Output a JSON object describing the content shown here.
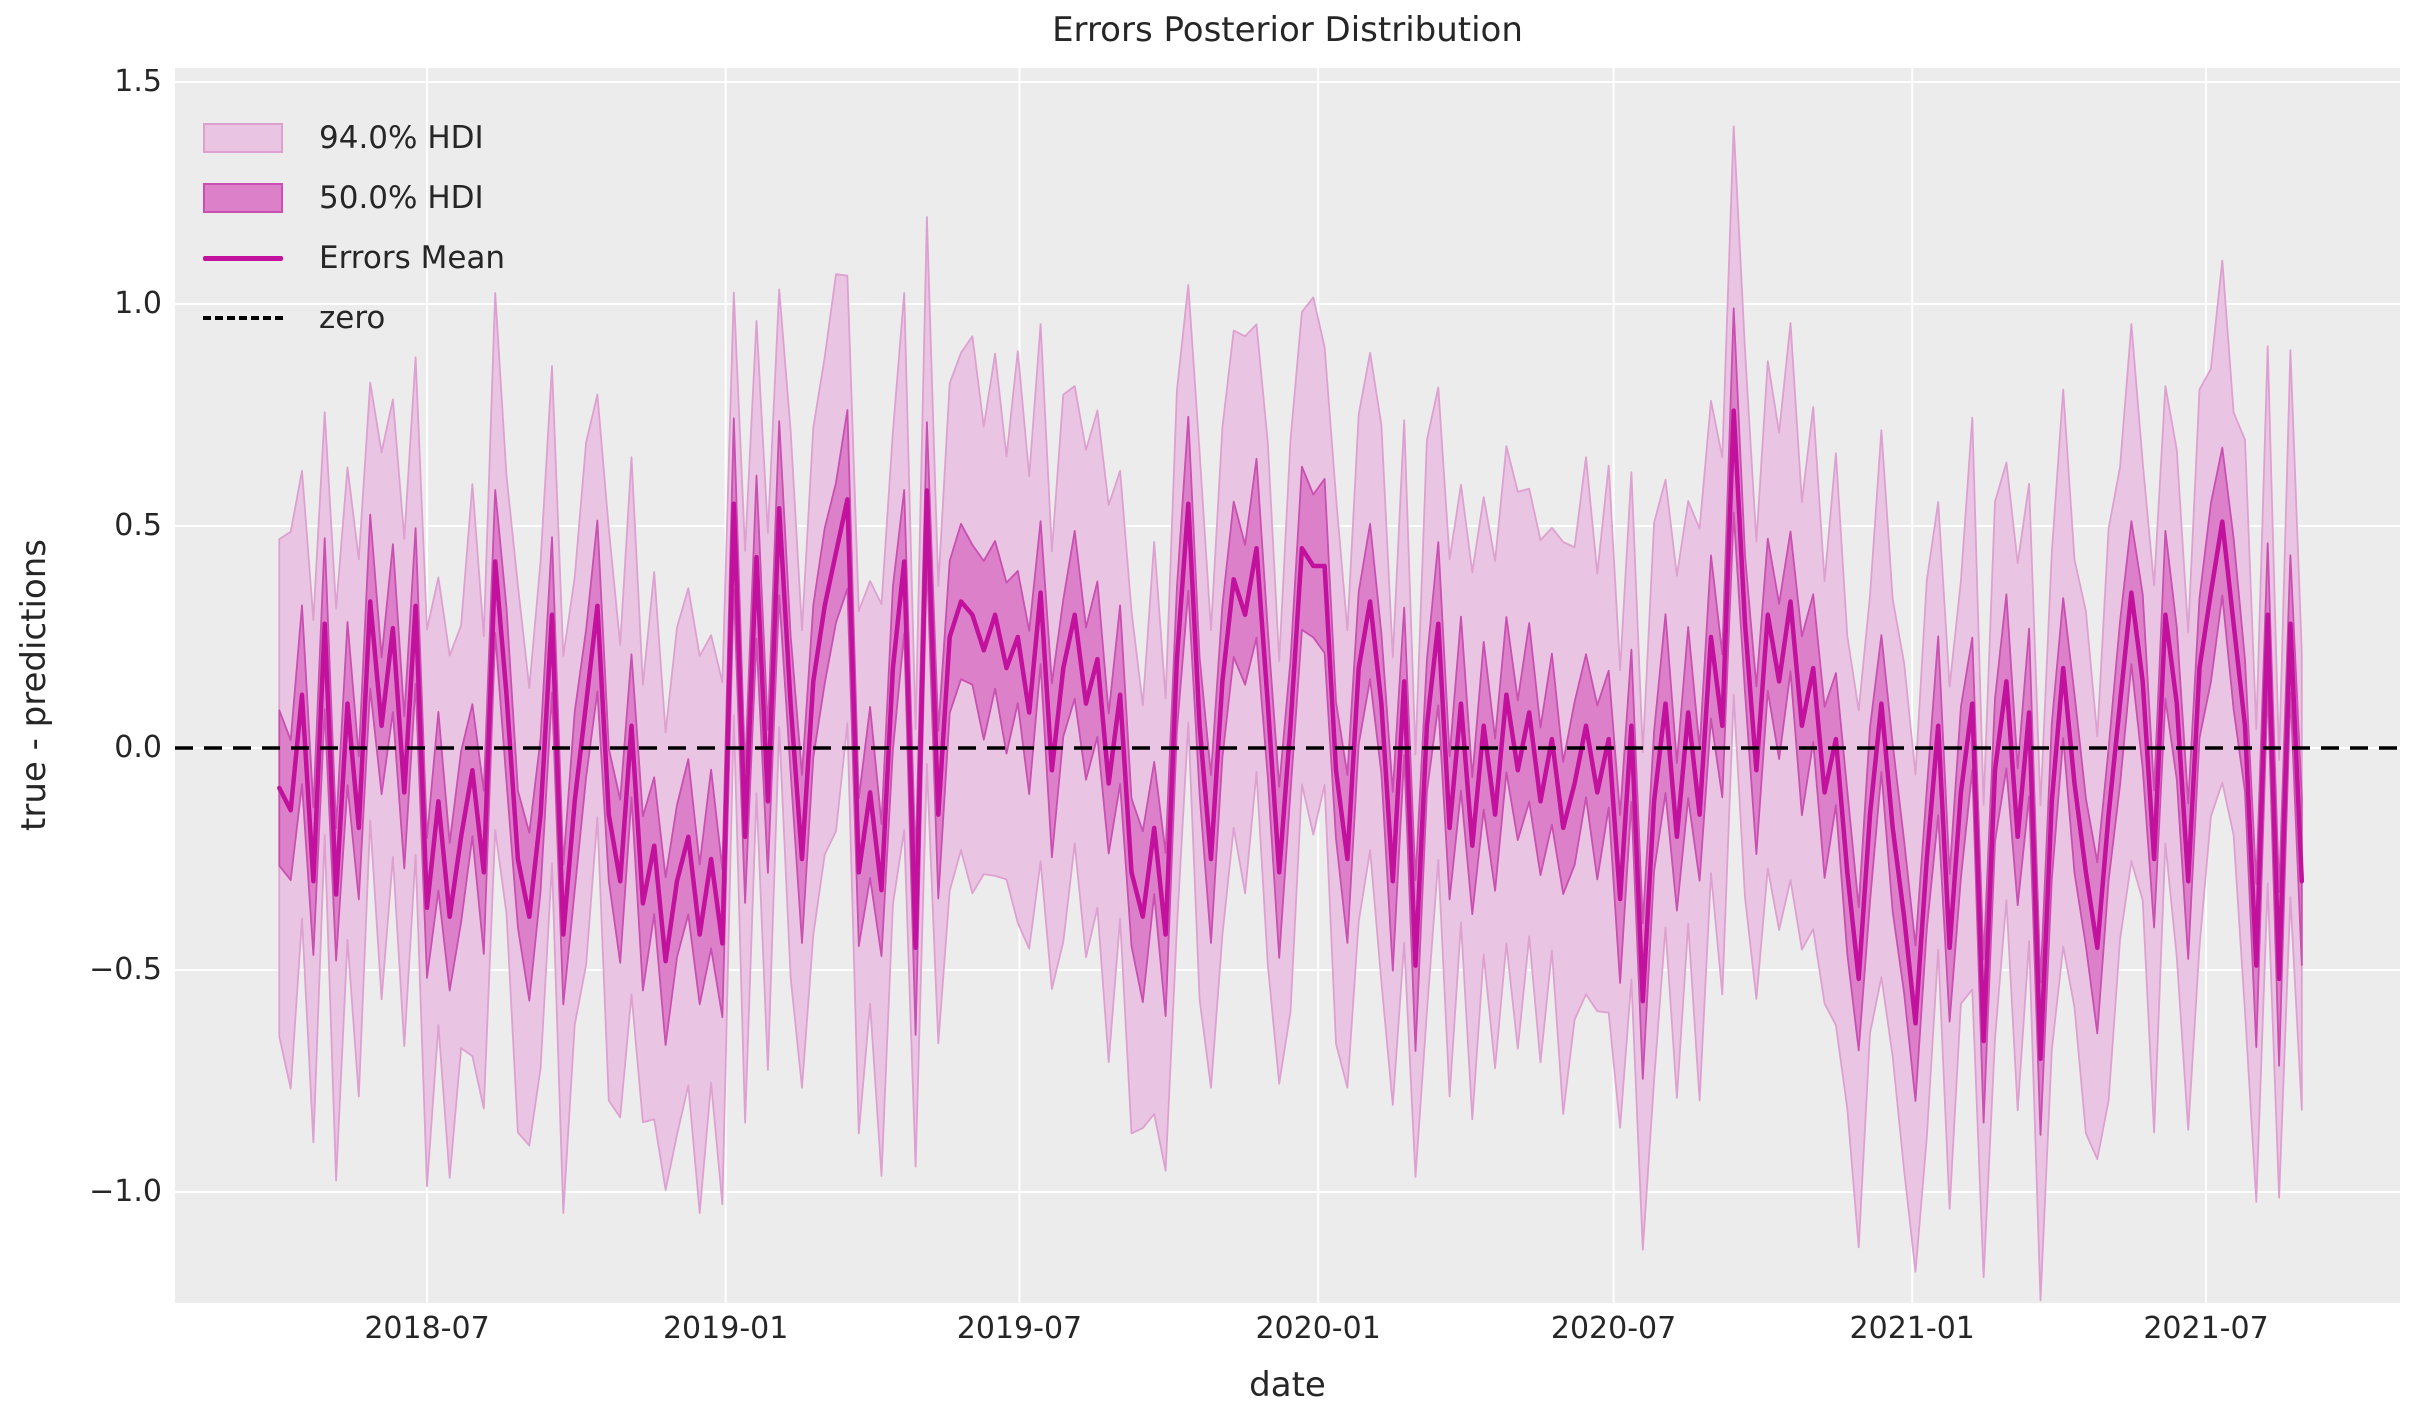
{
  "chart_data": {
    "type": "line",
    "subtype": "time-series mean with HDI uncertainty bands",
    "title": "Errors Posterior Distribution",
    "xlabel": "date",
    "ylabel": "true - predictions",
    "grid": true,
    "legend": {
      "position": "upper-left",
      "frame": false,
      "entries": [
        {
          "label": "94.0% HDI",
          "type": "patch",
          "fill": "#eac5e3",
          "edge": "#dda0d0"
        },
        {
          "label": "50.0% HDI",
          "type": "patch",
          "fill": "#dc80ca",
          "edge": "#c94fb0"
        },
        {
          "label": "Errors Mean",
          "type": "line",
          "color": "#c2119c"
        },
        {
          "label": "zero",
          "type": "dashed-line",
          "color": "#000000"
        }
      ]
    },
    "y_ticks": [
      {
        "v": 1.5,
        "label": "1.5"
      },
      {
        "v": 1.0,
        "label": "1.0"
      },
      {
        "v": 0.5,
        "label": "0.5"
      },
      {
        "v": 0.0,
        "label": "0.0"
      },
      {
        "v": -0.5,
        "label": "−0.5"
      },
      {
        "v": -1.0,
        "label": "−1.0"
      }
    ],
    "x_ticks": [
      {
        "date": "2018-07-01",
        "label": "2018-07"
      },
      {
        "date": "2019-01-01",
        "label": "2019-01"
      },
      {
        "date": "2019-07-01",
        "label": "2019-07"
      },
      {
        "date": "2020-01-01",
        "label": "2020-01"
      },
      {
        "date": "2020-07-01",
        "label": "2020-07"
      },
      {
        "date": "2021-01-01",
        "label": "2021-01"
      },
      {
        "date": "2021-07-01",
        "label": "2021-07"
      }
    ],
    "ylim": [
      -1.25,
      1.53
    ],
    "xlim_dates": [
      "2018-01-22",
      "2021-10-28"
    ],
    "zero_line": 0.0,
    "colors": {
      "axes_background": "#ececec",
      "grid": "#ffffff",
      "text": "#262626",
      "mean_line": "#c2119c",
      "hdi94_fill": "#eac5e3",
      "hdi94_edge": "#dda0d0",
      "hdi50_fill": "#dc80ca",
      "hdi50_edge": "#c94fb0",
      "zero_line": "#000000"
    },
    "series": {
      "name": "Errors Mean",
      "cadence": "weekly",
      "start_date": "2018-04-01",
      "interval_days": 7,
      "mean": [
        -0.09,
        -0.14,
        0.12,
        -0.3,
        0.28,
        -0.33,
        0.1,
        -0.18,
        0.33,
        0.05,
        0.27,
        -0.1,
        0.32,
        -0.36,
        -0.12,
        -0.38,
        -0.2,
        -0.05,
        -0.28,
        0.42,
        0.12,
        -0.25,
        -0.38,
        -0.15,
        0.3,
        -0.42,
        -0.12,
        0.1,
        0.32,
        -0.15,
        -0.3,
        0.05,
        -0.35,
        -0.22,
        -0.48,
        -0.3,
        -0.2,
        -0.42,
        -0.25,
        -0.44,
        0.55,
        -0.2,
        0.43,
        -0.12,
        0.54,
        0.1,
        -0.25,
        0.15,
        0.32,
        0.44,
        0.56,
        -0.28,
        -0.1,
        -0.32,
        0.18,
        0.42,
        -0.45,
        0.58,
        -0.15,
        0.25,
        0.33,
        0.3,
        0.22,
        0.3,
        0.18,
        0.25,
        0.08,
        0.35,
        -0.05,
        0.18,
        0.3,
        0.1,
        0.2,
        -0.08,
        0.12,
        -0.28,
        -0.38,
        -0.18,
        -0.42,
        0.2,
        0.55,
        0.05,
        -0.25,
        0.15,
        0.38,
        0.3,
        0.45,
        0.1,
        -0.28,
        0.05,
        0.45,
        0.41,
        0.41,
        -0.05,
        -0.25,
        0.18,
        0.33,
        0.1,
        -0.3,
        0.15,
        -0.49,
        0.05,
        0.28,
        -0.18,
        0.1,
        -0.22,
        0.05,
        -0.15,
        0.12,
        -0.05,
        0.08,
        -0.12,
        0.02,
        -0.18,
        -0.08,
        0.05,
        -0.1,
        0.02,
        -0.34,
        0.05,
        -0.57,
        -0.12,
        0.1,
        -0.2,
        0.08,
        -0.15,
        0.25,
        0.05,
        0.76,
        0.28,
        -0.05,
        0.3,
        0.15,
        0.33,
        0.05,
        0.18,
        -0.1,
        0.02,
        -0.28,
        -0.52,
        -0.15,
        0.1,
        -0.18,
        -0.38,
        -0.62,
        -0.25,
        0.05,
        -0.45,
        -0.1,
        0.1,
        -0.66,
        -0.05,
        0.15,
        -0.2,
        0.08,
        -0.7,
        -0.12,
        0.18,
        -0.08,
        -0.28,
        -0.45,
        -0.15,
        0.1,
        0.35,
        0.15,
        -0.25,
        0.3,
        0.1,
        -0.3,
        0.18,
        0.35,
        0.51,
        0.28,
        0.05,
        -0.49,
        0.3,
        -0.52,
        0.28,
        -0.3
      ],
      "hdi94_halfwidth_base": 0.56,
      "hdi50_halfwidth_base": 0.175,
      "halfwidth_pattern94": [
        1.0,
        1.12,
        0.9,
        1.05,
        0.85,
        1.15,
        0.95,
        1.08,
        0.88,
        1.1,
        0.92,
        1.02
      ],
      "halfwidth_pattern50": [
        1.0,
        0.9,
        1.15,
        0.95,
        1.1,
        0.85,
        1.05,
        0.92,
        1.12,
        0.88,
        1.08,
        0.98
      ],
      "overrides": {
        "128": {
          "hdi94_halfwidth": 0.64,
          "hdi50_halfwidth": 0.23
        }
      }
    }
  }
}
